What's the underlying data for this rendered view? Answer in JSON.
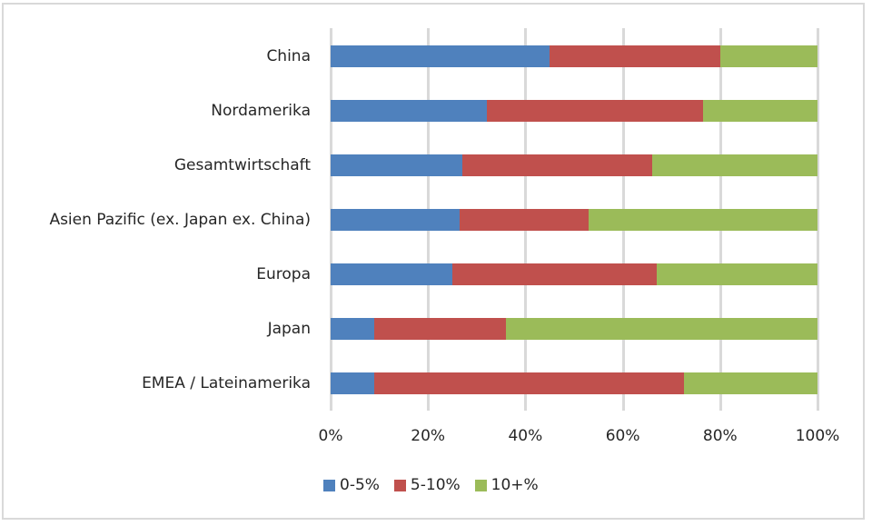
{
  "chart_data": {
    "type": "bar",
    "orientation": "horizontal",
    "stacked": "percent",
    "title": "",
    "xlabel": "",
    "ylabel": "",
    "xlim": [
      0,
      100
    ],
    "grid": true,
    "legend_position": "bottom",
    "categories": [
      "China",
      "Nordamerika",
      "Gesamtwirtschaft",
      "Asien Pazific (ex. Japan ex. China)",
      "Europa",
      "Japan",
      "EMEA / Lateinamerika"
    ],
    "series": [
      {
        "name": "0-5%",
        "color": "#4f81bd",
        "values": [
          45,
          32,
          27,
          26.5,
          25,
          9,
          9
        ]
      },
      {
        "name": "5-10%",
        "color": "#c0504d",
        "values": [
          35,
          44.5,
          39,
          26.5,
          42,
          27,
          63.5
        ]
      },
      {
        "name": "10+%",
        "color": "#9bbb59",
        "values": [
          20,
          23.5,
          34,
          47,
          33,
          64,
          27.5
        ]
      }
    ],
    "x_ticks": [
      "0%",
      "20%",
      "40%",
      "60%",
      "80%",
      "100%"
    ]
  },
  "labels": {
    "categories": [
      "China",
      "Nordamerika",
      "Gesamtwirtschaft",
      "Asien Pazific (ex. Japan ex. China)",
      "Europa",
      "Japan",
      "EMEA / Lateinamerika"
    ],
    "ticks": [
      "0%",
      "20%",
      "40%",
      "60%",
      "80%",
      "100%"
    ],
    "legend": [
      "0-5%",
      "5-10%",
      "10+%"
    ]
  }
}
